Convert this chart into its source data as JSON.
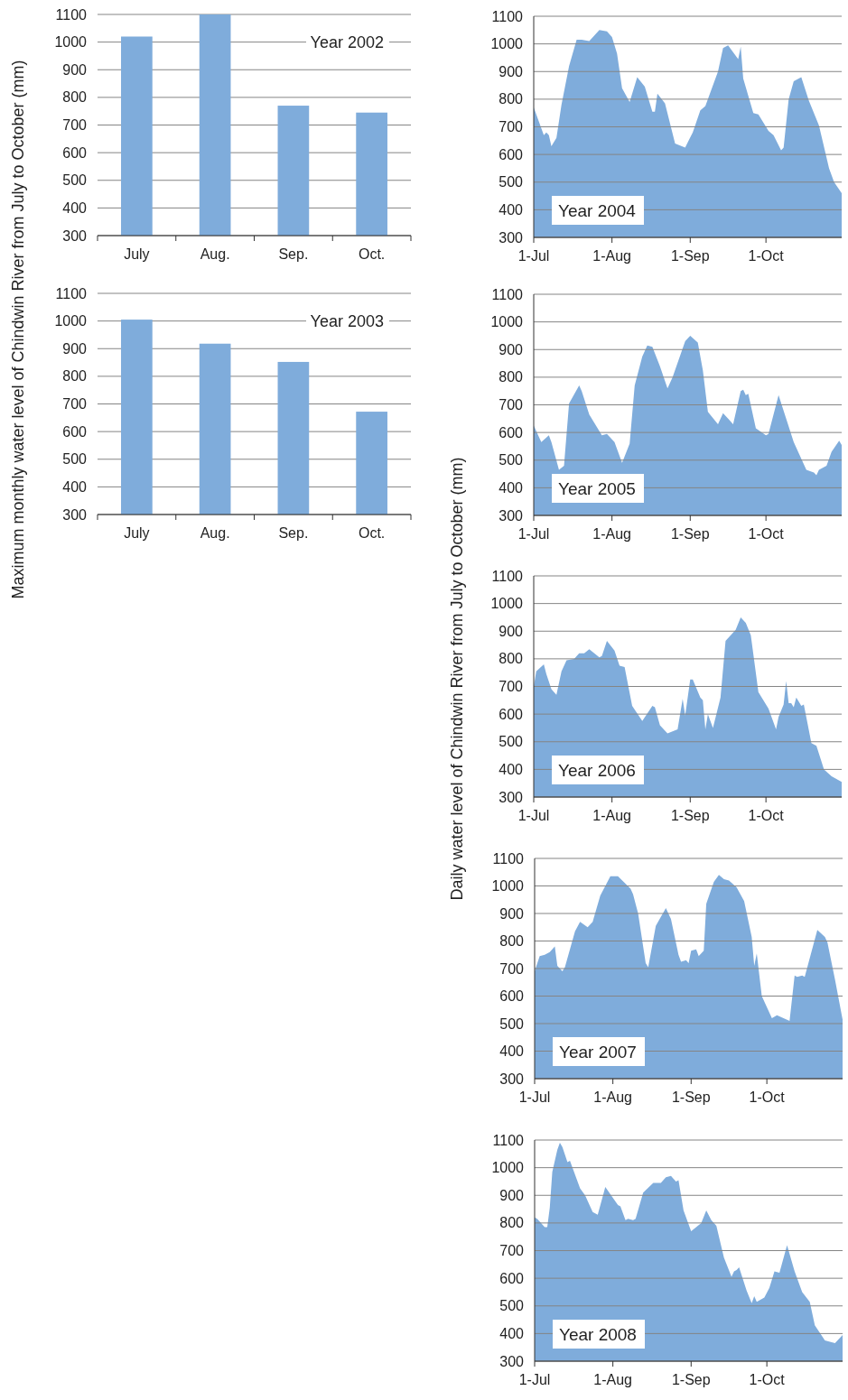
{
  "chart_data": [
    {
      "type": "bar",
      "ylabel": "Maximum monthly water level of Chindwin River from July to October (mm)",
      "categories": [
        "July",
        "Aug.",
        "Sep.",
        "Oct."
      ],
      "values": [
        1020,
        1100,
        770,
        745
      ],
      "color": "#7facdb",
      "ylim": [
        300,
        1100
      ],
      "yticks": [
        300,
        400,
        500,
        600,
        700,
        800,
        900,
        1000,
        1100
      ],
      "grid": "y",
      "annotations": [
        "Year 2002"
      ]
    },
    {
      "type": "bar",
      "categories": [
        "July",
        "Aug.",
        "Sep.",
        "Oct."
      ],
      "values": [
        1005,
        918,
        852,
        672
      ],
      "color": "#7facdb",
      "ylim": [
        300,
        1100
      ],
      "yticks": [
        300,
        400,
        500,
        600,
        700,
        800,
        900,
        1000,
        1100
      ],
      "grid": "y",
      "annotations": [
        "Year 2003"
      ]
    },
    {
      "type": "area",
      "x": [
        "--07-01",
        "--07-05",
        "--07-06",
        "--07-07",
        "--07-08",
        "--07-10",
        "--07-12",
        "--07-15",
        "--07-18",
        "--07-20",
        "--07-23",
        "--07-27",
        "--07-30",
        "--08-01",
        "--08-03",
        "--08-05",
        "--08-08",
        "--08-11",
        "--08-14",
        "--08-17",
        "--08-18",
        "--08-19",
        "--08-22",
        "--08-26",
        "--08-30",
        "--09-02",
        "--09-05",
        "--09-07",
        "--09-12",
        "--09-14",
        "--09-16",
        "--09-20",
        "--09-21",
        "--09-22",
        "--09-26",
        "--09-28",
        "--10-02",
        "--10-04",
        "--10-07",
        "--10-08",
        "--10-10",
        "--10-12",
        "--10-15",
        "--10-18",
        "--10-22",
        "--10-26",
        "--10-28",
        "--10-31"
      ],
      "values": [
        770,
        670,
        680,
        670,
        630,
        660,
        780,
        920,
        1015,
        1015,
        1010,
        1050,
        1045,
        1025,
        965,
        840,
        790,
        880,
        845,
        755,
        755,
        820,
        785,
        640,
        625,
        680,
        760,
        775,
        900,
        985,
        995,
        945,
        990,
        875,
        750,
        745,
        685,
        670,
        615,
        625,
        800,
        865,
        880,
        795,
        705,
        550,
        500,
        460
      ],
      "color": "#7facdb",
      "xlim": [
        "--07-01",
        "--10-31"
      ],
      "xticks": [
        {
          "value": "--07-01",
          "label": "1-Jul"
        },
        {
          "value": "--08-01",
          "label": "1-Aug"
        },
        {
          "value": "--09-01",
          "label": "1-Sep"
        },
        {
          "value": "--10-01",
          "label": "1-Oct"
        }
      ],
      "ylim": [
        300,
        1100
      ],
      "yticks": [
        300,
        400,
        500,
        600,
        700,
        800,
        900,
        1000,
        1100
      ],
      "grid": "y",
      "annotations": [
        "Year 2004"
      ]
    },
    {
      "type": "area",
      "x": [
        "--07-01",
        "--07-04",
        "--07-07",
        "--07-08",
        "--07-11",
        "--07-13",
        "--07-15",
        "--07-19",
        "--07-20",
        "--07-23",
        "--07-28",
        "--07-30",
        "--08-02",
        "--08-05",
        "--08-08",
        "--08-10",
        "--08-13",
        "--08-15",
        "--08-17",
        "--08-20",
        "--08-23",
        "--08-25",
        "--08-30",
        "--09-01",
        "--09-04",
        "--09-06",
        "--09-08",
        "--09-12",
        "--09-14",
        "--09-16",
        "--09-18",
        "--09-21",
        "--09-22",
        "--09-23",
        "--09-24",
        "--09-27",
        "--10-01",
        "--10-02",
        "--10-06",
        "--10-09",
        "--10-12",
        "--10-17",
        "--10-20",
        "--10-21",
        "--10-22",
        "--10-25",
        "--10-27",
        "--10-30",
        "--10-31"
      ],
      "values": [
        625,
        565,
        590,
        565,
        465,
        480,
        705,
        770,
        750,
        665,
        590,
        595,
        565,
        490,
        560,
        770,
        875,
        915,
        910,
        840,
        760,
        800,
        930,
        950,
        925,
        825,
        675,
        630,
        670,
        650,
        630,
        750,
        755,
        735,
        740,
        615,
        590,
        595,
        735,
        650,
        565,
        465,
        455,
        445,
        465,
        480,
        530,
        570,
        555
      ],
      "color": "#7facdb",
      "xlim": [
        "--07-01",
        "--10-31"
      ],
      "xticks": [
        {
          "value": "--07-01",
          "label": "1-Jul"
        },
        {
          "value": "--08-01",
          "label": "1-Aug"
        },
        {
          "value": "--09-01",
          "label": "1-Sep"
        },
        {
          "value": "--10-01",
          "label": "1-Oct"
        }
      ],
      "ylim": [
        300,
        1100
      ],
      "yticks": [
        300,
        400,
        500,
        600,
        700,
        800,
        900,
        1000,
        1100
      ],
      "grid": "y",
      "annotations": [
        "Year 2005"
      ]
    },
    {
      "type": "area",
      "ylabel": "Daily water level of Chindwin River from July to October (mm)",
      "x": [
        "--07-01",
        "--07-02",
        "--07-05",
        "--07-06",
        "--07-08",
        "--07-10",
        "--07-12",
        "--07-14",
        "--07-17",
        "--07-19",
        "--07-21",
        "--07-23",
        "--07-27",
        "--07-28",
        "--07-30",
        "--08-02",
        "--08-04",
        "--08-06",
        "--08-09",
        "--08-13",
        "--08-17",
        "--08-18",
        "--08-20",
        "--08-23",
        "--08-27",
        "--08-29",
        "--08-30",
        "--09-01",
        "--09-02",
        "--09-05",
        "--09-06",
        "--09-07",
        "--09-08",
        "--09-10",
        "--09-13",
        "--09-15",
        "--09-19",
        "--09-21",
        "--09-23",
        "--09-25",
        "--09-28",
        "--10-02",
        "--10-05",
        "--10-06",
        "--10-08",
        "--10-09",
        "--10-10",
        "--10-11",
        "--10-12",
        "--10-13",
        "--10-14",
        "--10-15",
        "--10-16",
        "--10-19",
        "--10-21",
        "--10-24",
        "--10-27",
        "--10-31"
      ],
      "values": [
        700,
        755,
        780,
        745,
        690,
        670,
        755,
        795,
        800,
        820,
        820,
        835,
        805,
        810,
        865,
        830,
        775,
        770,
        630,
        575,
        630,
        625,
        560,
        530,
        545,
        655,
        595,
        725,
        725,
        660,
        650,
        545,
        600,
        550,
        660,
        865,
        905,
        950,
        930,
        885,
        680,
        620,
        545,
        590,
        635,
        720,
        640,
        640,
        625,
        660,
        645,
        630,
        635,
        495,
        485,
        400,
        375,
        355
      ],
      "color": "#7facdb",
      "xlim": [
        "--07-01",
        "--10-31"
      ],
      "xticks": [
        {
          "value": "--07-01",
          "label": "1-Jul"
        },
        {
          "value": "--08-01",
          "label": "1-Aug"
        },
        {
          "value": "--09-01",
          "label": "1-Sep"
        },
        {
          "value": "--10-01",
          "label": "1-Oct"
        }
      ],
      "ylim": [
        300,
        1100
      ],
      "yticks": [
        300,
        400,
        500,
        600,
        700,
        800,
        900,
        1000,
        1100
      ],
      "grid": "y",
      "annotations": [
        "Year 2006"
      ]
    },
    {
      "type": "area",
      "x": [
        "--07-01",
        "--07-03",
        "--07-05",
        "--07-07",
        "--07-09",
        "--07-10",
        "--07-12",
        "--07-13",
        "--07-17",
        "--07-19",
        "--07-22",
        "--07-24",
        "--07-27",
        "--07-31",
        "--08-03",
        "--08-08",
        "--08-09",
        "--08-11",
        "--08-14",
        "--08-15",
        "--08-18",
        "--08-22",
        "--08-24",
        "--08-27",
        "--08-28",
        "--08-30",
        "--08-31",
        "--09-01",
        "--09-03",
        "--09-04",
        "--09-06",
        "--09-07",
        "--09-10",
        "--09-12",
        "--09-14",
        "--09-16",
        "--09-19",
        "--09-22",
        "--09-25",
        "--09-26",
        "--09-27",
        "--09-29",
        "--10-03",
        "--10-05",
        "--10-10",
        "--10-12",
        "--10-13",
        "--10-15",
        "--10-16",
        "--10-21",
        "--10-24",
        "--10-25",
        "--10-28",
        "--10-31"
      ],
      "values": [
        690,
        745,
        750,
        760,
        780,
        710,
        690,
        705,
        835,
        870,
        850,
        870,
        965,
        1035,
        1035,
        990,
        970,
        900,
        720,
        705,
        855,
        920,
        880,
        750,
        725,
        730,
        720,
        765,
        770,
        745,
        765,
        935,
        1015,
        1040,
        1025,
        1020,
        995,
        945,
        815,
        710,
        755,
        600,
        520,
        530,
        510,
        675,
        670,
        675,
        670,
        840,
        815,
        795,
        660,
        515
      ],
      "color": "#7facdb",
      "xlim": [
        "--07-01",
        "--10-31"
      ],
      "xticks": [
        {
          "value": "--07-01",
          "label": "1-Jul"
        },
        {
          "value": "--08-01",
          "label": "1-Aug"
        },
        {
          "value": "--09-01",
          "label": "1-Sep"
        },
        {
          "value": "--10-01",
          "label": "1-Oct"
        }
      ],
      "ylim": [
        300,
        1100
      ],
      "yticks": [
        300,
        400,
        500,
        600,
        700,
        800,
        900,
        1000,
        1100
      ],
      "grid": "y",
      "annotations": [
        "Year 2007"
      ]
    },
    {
      "type": "area",
      "x": [
        "--07-01",
        "--07-02",
        "--07-05",
        "--07-06",
        "--07-07",
        "--07-08",
        "--07-10",
        "--07-11",
        "--07-12",
        "--07-14",
        "--07-15",
        "--07-19",
        "--07-21",
        "--07-24",
        "--07-26",
        "--07-29",
        "--08-03",
        "--08-04",
        "--08-06",
        "--08-07",
        "--08-09",
        "--08-10",
        "--08-13",
        "--08-17",
        "--08-20",
        "--08-22",
        "--08-24",
        "--08-26",
        "--08-27",
        "--08-29",
        "--09-01",
        "--09-05",
        "--09-07",
        "--09-09",
        "--09-11",
        "--09-14",
        "--09-17",
        "--09-18",
        "--09-19",
        "--09-20",
        "--09-23",
        "--09-25",
        "--09-26",
        "--09-27",
        "--09-30",
        "--10-02",
        "--10-04",
        "--10-06",
        "--10-09",
        "--10-12",
        "--10-15",
        "--10-18",
        "--10-20",
        "--10-24",
        "--10-28",
        "--10-31"
      ],
      "values": [
        820,
        815,
        785,
        785,
        855,
        985,
        1065,
        1090,
        1075,
        1020,
        1025,
        925,
        900,
        840,
        830,
        930,
        865,
        860,
        810,
        815,
        810,
        815,
        910,
        945,
        945,
        965,
        970,
        950,
        955,
        845,
        770,
        800,
        845,
        810,
        790,
        675,
        605,
        625,
        630,
        640,
        555,
        510,
        535,
        515,
        530,
        565,
        625,
        620,
        720,
        625,
        550,
        515,
        430,
        375,
        365,
        395
      ],
      "color": "#7facdb",
      "xlim": [
        "--07-01",
        "--10-31"
      ],
      "xticks": [
        {
          "value": "--07-01",
          "label": "1-Jul"
        },
        {
          "value": "--08-01",
          "label": "1-Aug"
        },
        {
          "value": "--09-01",
          "label": "1-Sep"
        },
        {
          "value": "--10-01",
          "label": "1-Oct"
        }
      ],
      "ylim": [
        300,
        1100
      ],
      "yticks": [
        300,
        400,
        500,
        600,
        700,
        800,
        900,
        1000,
        1100
      ],
      "grid": "y",
      "annotations": [
        "Year 2008"
      ]
    }
  ]
}
